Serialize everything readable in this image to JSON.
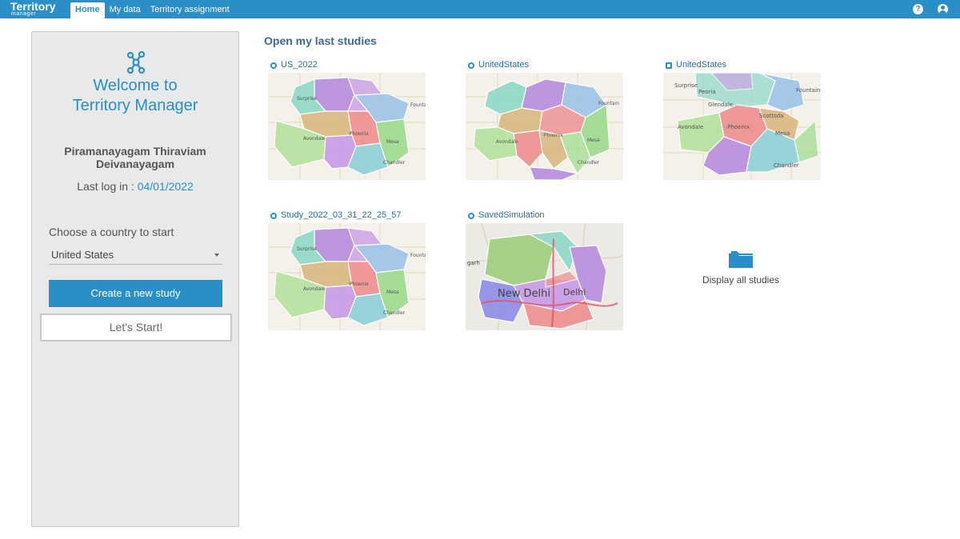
{
  "app": {
    "logo_main": "Territory",
    "logo_sub": "manager",
    "help_icon": "help-icon",
    "user_icon": "user-icon"
  },
  "nav": {
    "items": [
      {
        "label": "Home",
        "active": true
      },
      {
        "label": "My data",
        "active": false
      },
      {
        "label": "Territory assignment",
        "active": false
      }
    ]
  },
  "left": {
    "welcome_line1": "Welcome to",
    "welcome_line2": "Territory Manager",
    "user_name": "Piramanayagam Thiraviam Deivanayagam",
    "last_login_label": "Last log in :",
    "last_login_date": "04/01/2022",
    "choose_label": "Choose a country to start",
    "country_value": "United States",
    "create_button": "Create a new study",
    "start_button": "Let's Start!"
  },
  "main": {
    "section_title": "Open my last studies",
    "studies": [
      {
        "name": "US_2022",
        "map": "phoenix"
      },
      {
        "name": "UnitedStates",
        "map": "phoenix"
      },
      {
        "name": "UnitedStates",
        "map": "phoenix-zoom"
      },
      {
        "name": "Study_2022_03_31_22_25_57",
        "map": "phoenix"
      },
      {
        "name": "SavedSimulation",
        "map": "delhi"
      }
    ],
    "display_all_label": "Display all studies"
  },
  "colors": {
    "accent": "#2a8fc7",
    "panel_bg": "#e8e9ea"
  }
}
